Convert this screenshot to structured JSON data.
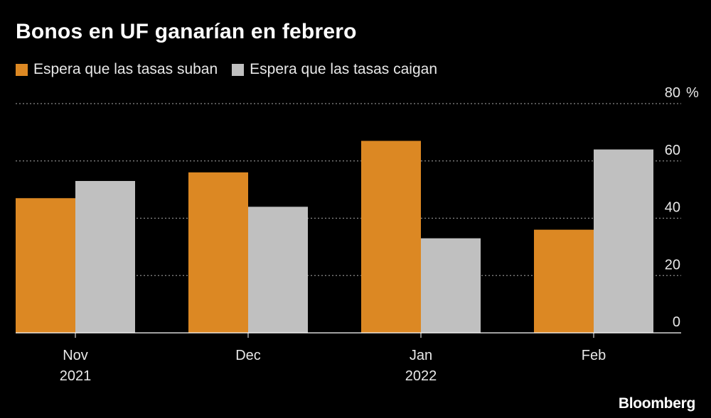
{
  "title": "Bonos en UF ganarían en febrero",
  "brand": "Bloomberg",
  "colors": {
    "rise": "#dc8823",
    "fall": "#c0c0c0",
    "grid": "#8a8a8a",
    "axis": "#ffffff"
  },
  "chart_data": {
    "type": "bar",
    "title": "Bonos en UF ganarían en febrero",
    "categories": [
      "Nov",
      "Dec",
      "Jan",
      "Feb"
    ],
    "category_sublabels": [
      "2021",
      "",
      "2022",
      ""
    ],
    "series": [
      {
        "name": "Espera que las tasas suban",
        "values": [
          47,
          56,
          67,
          36
        ]
      },
      {
        "name": "Espera que las tasas caigan",
        "values": [
          53,
          44,
          33,
          64
        ]
      }
    ],
    "ylim": [
      0,
      80
    ],
    "yticks": [
      0,
      20,
      40,
      60,
      80
    ],
    "y_unit": "%",
    "grid": true,
    "y_axis_position": "right",
    "legend_position": "top-left"
  }
}
